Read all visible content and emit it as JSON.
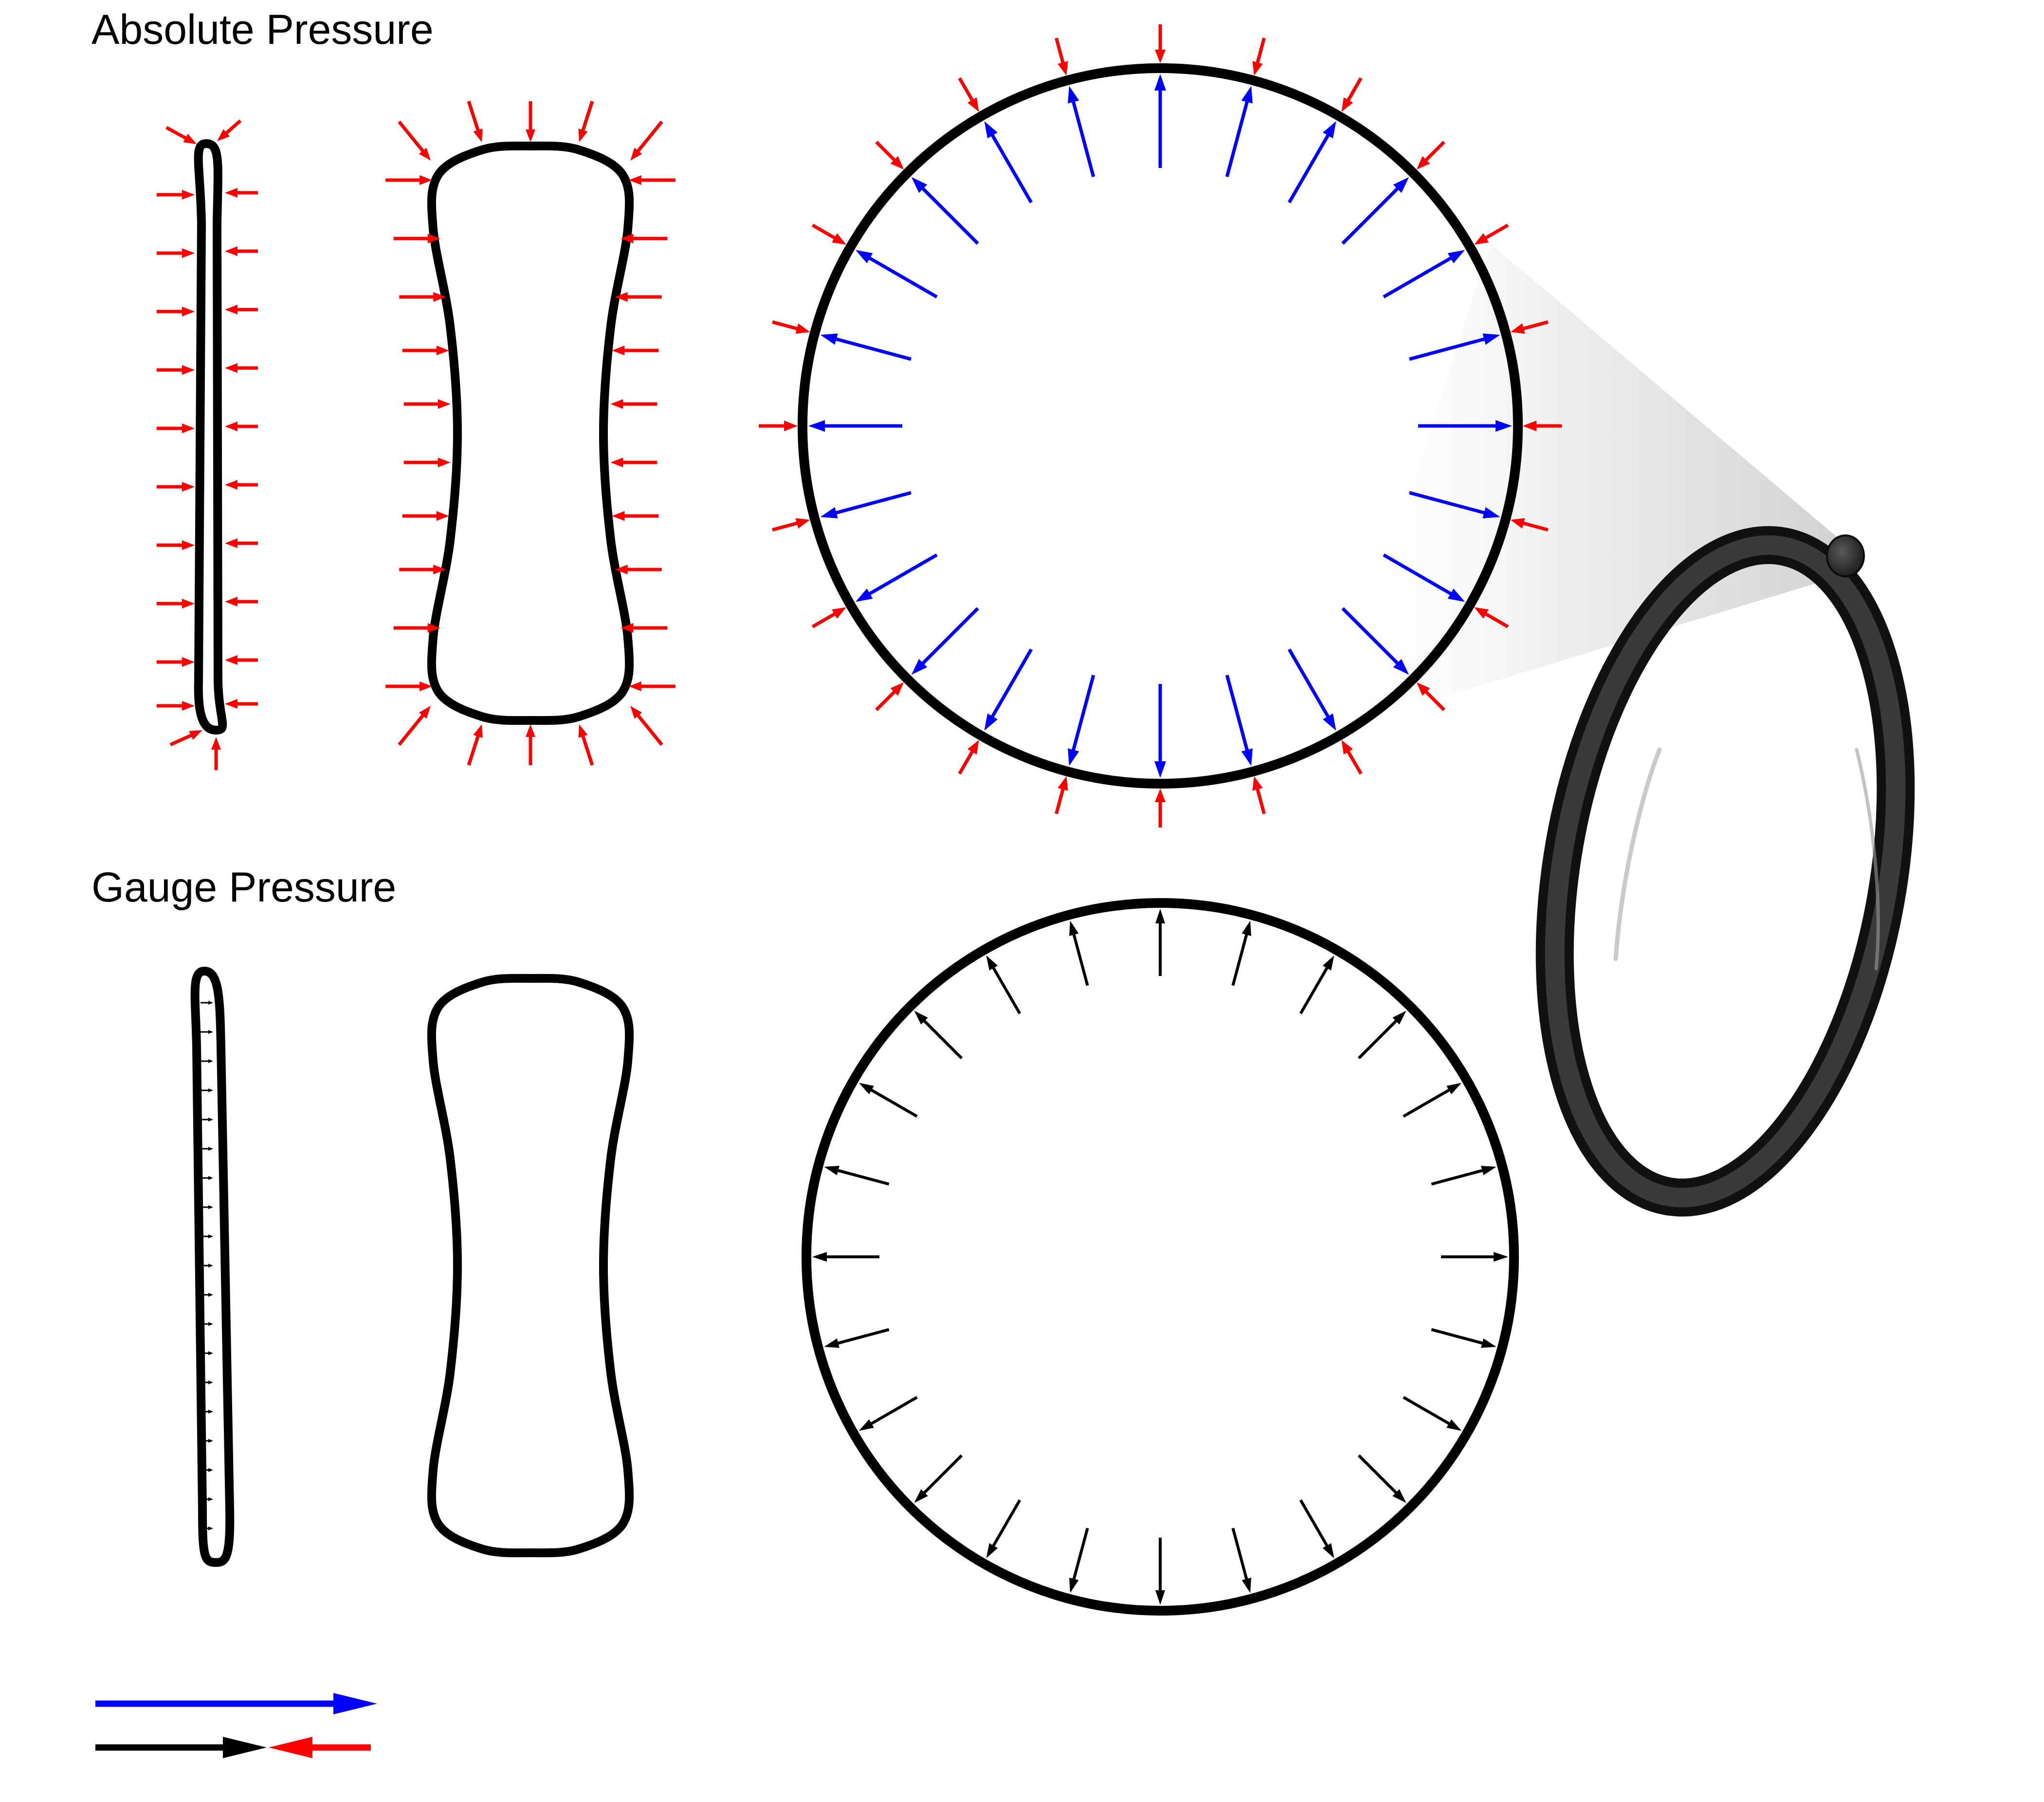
{
  "headings": {
    "absolute": "Absolute Pressure",
    "gauge": "Gauge Pressure"
  },
  "colors": {
    "external_pressure": "#ff0000",
    "internal_pressure": "#0000ff",
    "net_pressure": "#000000",
    "outline": "#000000",
    "background": "#ffffff",
    "oring": "#1e1e1e"
  },
  "legend": {
    "rows": [
      {
        "style": "single-arrow",
        "color": "#0000ff"
      },
      {
        "style": "opposing-arrows",
        "colors": [
          "#000000",
          "#ff0000"
        ]
      }
    ]
  },
  "panels": [
    {
      "row": "absolute",
      "shape": "flat",
      "arrows": [
        "external"
      ]
    },
    {
      "row": "absolute",
      "shape": "pinched",
      "arrows": [
        "external"
      ]
    },
    {
      "row": "absolute",
      "shape": "round",
      "arrows": [
        "external",
        "internal"
      ]
    },
    {
      "row": "gauge",
      "shape": "flat",
      "arrows": [
        "net"
      ]
    },
    {
      "row": "gauge",
      "shape": "pinched",
      "arrows": []
    },
    {
      "row": "gauge",
      "shape": "round",
      "arrows": [
        "net"
      ]
    }
  ],
  "oring": {
    "shape": "3d-ring",
    "magnified": "cross-section"
  }
}
